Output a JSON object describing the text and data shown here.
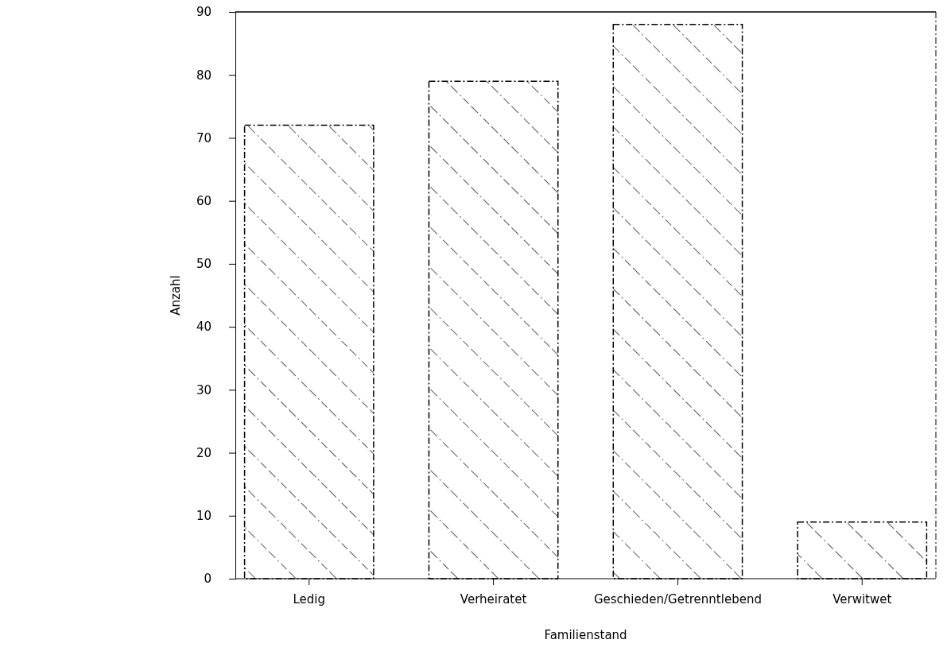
{
  "chart_data": {
    "type": "bar",
    "xlabel": "Familienstand",
    "ylabel": "Anzahl",
    "categories": [
      "Ledig",
      "Verheiratet",
      "Geschieden/Getrenntlebend",
      "Verwitwet"
    ],
    "values": [
      72,
      79,
      88,
      9
    ],
    "color": "#000000",
    "ylim": [
      0,
      90
    ],
    "yticks": [
      0,
      10,
      20,
      30,
      40,
      50,
      60,
      70,
      80,
      90
    ],
    "grid": false
  }
}
